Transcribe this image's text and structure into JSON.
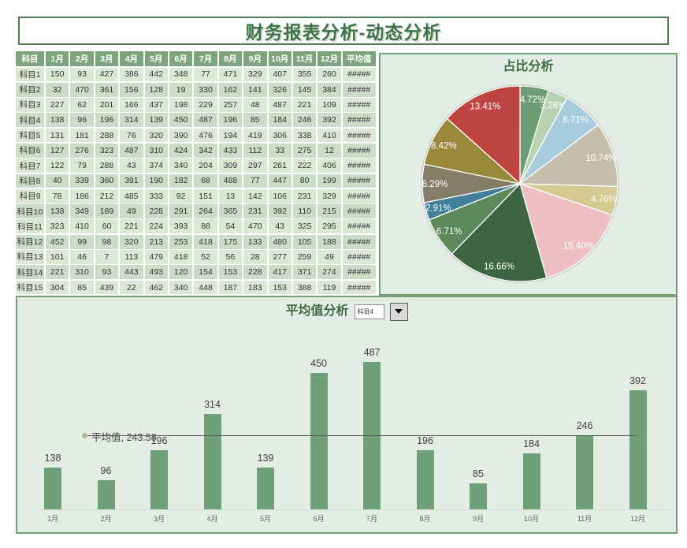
{
  "page_title": "财务报表分析-动态分析",
  "table": {
    "headers": [
      "科目",
      "1月",
      "2月",
      "3月",
      "4月",
      "5月",
      "6月",
      "7月",
      "8月",
      "9月",
      "10月",
      "11月",
      "12月",
      "平均值"
    ],
    "rows": [
      {
        "name": "科目1",
        "values": [
          150,
          93,
          427,
          386,
          442,
          348,
          77,
          471,
          329,
          407,
          355,
          260
        ],
        "avg": "#####"
      },
      {
        "name": "科目2",
        "values": [
          32,
          470,
          361,
          156,
          128,
          19,
          330,
          162,
          141,
          326,
          145,
          384
        ],
        "avg": "#####"
      },
      {
        "name": "科目3",
        "values": [
          227,
          62,
          201,
          166,
          437,
          198,
          229,
          257,
          48,
          487,
          221,
          109
        ],
        "avg": "#####"
      },
      {
        "name": "科目4",
        "values": [
          138,
          96,
          196,
          314,
          139,
          450,
          487,
          196,
          85,
          184,
          246,
          392
        ],
        "avg": "#####"
      },
      {
        "name": "科目5",
        "values": [
          131,
          181,
          288,
          76,
          320,
          390,
          476,
          194,
          419,
          306,
          338,
          410
        ],
        "avg": "#####"
      },
      {
        "name": "科目6",
        "values": [
          127,
          276,
          323,
          487,
          310,
          424,
          342,
          433,
          112,
          33,
          275,
          12
        ],
        "avg": "#####"
      },
      {
        "name": "科目7",
        "values": [
          122,
          79,
          288,
          43,
          374,
          340,
          204,
          309,
          297,
          261,
          222,
          406
        ],
        "avg": "#####"
      },
      {
        "name": "科目8",
        "values": [
          40,
          339,
          360,
          391,
          190,
          182,
          68,
          488,
          77,
          447,
          80,
          199
        ],
        "avg": "#####"
      },
      {
        "name": "科目9",
        "values": [
          78,
          186,
          212,
          485,
          333,
          92,
          151,
          13,
          142,
          106,
          231,
          329
        ],
        "avg": "#####"
      },
      {
        "name": "科目10",
        "values": [
          138,
          349,
          189,
          49,
          228,
          291,
          264,
          365,
          231,
          392,
          110,
          215
        ],
        "avg": "#####"
      },
      {
        "name": "科目11",
        "values": [
          323,
          410,
          60,
          221,
          224,
          393,
          88,
          54,
          470,
          43,
          325,
          295
        ],
        "avg": "#####"
      },
      {
        "name": "科目12",
        "values": [
          452,
          99,
          98,
          320,
          213,
          253,
          418,
          175,
          133,
          480,
          105,
          188
        ],
        "avg": "#####"
      },
      {
        "name": "科目13",
        "values": [
          101,
          46,
          7,
          113,
          479,
          418,
          52,
          56,
          28,
          277,
          259,
          49
        ],
        "avg": "#####"
      },
      {
        "name": "科目14",
        "values": [
          221,
          310,
          93,
          443,
          493,
          120,
          154,
          153,
          228,
          417,
          371,
          274
        ],
        "avg": "#####"
      },
      {
        "name": "科目15",
        "values": [
          304,
          85,
          439,
          22,
          462,
          340,
          448,
          187,
          183,
          153,
          388,
          119
        ],
        "avg": "#####"
      }
    ]
  },
  "pie_panel": {
    "title": "占比分析"
  },
  "bar_panel": {
    "title": "平均值分析",
    "selector_value": "科目4",
    "average_label": "平均值, 243.58"
  },
  "chart_data": [
    {
      "type": "pie",
      "title": "占比分析",
      "categories": [
        "1月",
        "2月",
        "3月",
        "4月",
        "5月",
        "6月",
        "7月",
        "8月",
        "9月",
        "10月",
        "11月",
        "12月"
      ],
      "values": [
        4.72,
        3.28,
        6.71,
        10.74,
        4.76,
        15.4,
        16.66,
        6.71,
        2.91,
        6.29,
        8.42,
        13.41
      ],
      "labels": [
        "4.72%",
        "3.28%",
        "6.71%",
        "10.74%",
        "4.76%",
        "15.40%",
        "16.66%",
        "6.71%",
        "2.91%",
        "6.29%",
        "8.42%",
        "13.41%"
      ],
      "colors": [
        "#6d9e73",
        "#b7d3af",
        "#a8cbdd",
        "#c5beac",
        "#d5ca92",
        "#eebfc2",
        "#3e6542",
        "#5c8a5c",
        "#417f9b",
        "#867d68",
        "#9a893b",
        "#bf4542"
      ],
      "legend": "none",
      "data_label_position": "inside"
    },
    {
      "type": "bar",
      "title": "平均值分析",
      "selected_series": "科目4",
      "categories": [
        "1月",
        "2月",
        "3月",
        "4月",
        "5月",
        "6月",
        "7月",
        "8月",
        "9月",
        "10月",
        "11月",
        "12月"
      ],
      "values": [
        138,
        96,
        196,
        314,
        139,
        450,
        487,
        196,
        85,
        184,
        246,
        392
      ],
      "average": 243.58,
      "average_label": "平均值, 243.58",
      "ylim": [
        0,
        500
      ],
      "bar_color": "#6fa078",
      "grid": "off",
      "data_labels": "above-bars"
    }
  ],
  "colors": {
    "accent_green": "#4b7a52",
    "title_text": "#3d7245",
    "panel_bg": "#e3ede3",
    "panel_border": "#74a077",
    "table_header_bg": "#7da57d",
    "row_light": "#dbe8d4",
    "row_dark": "#cbddc6",
    "bar_green": "#6fa078",
    "average_line": "#5a5a5a"
  }
}
